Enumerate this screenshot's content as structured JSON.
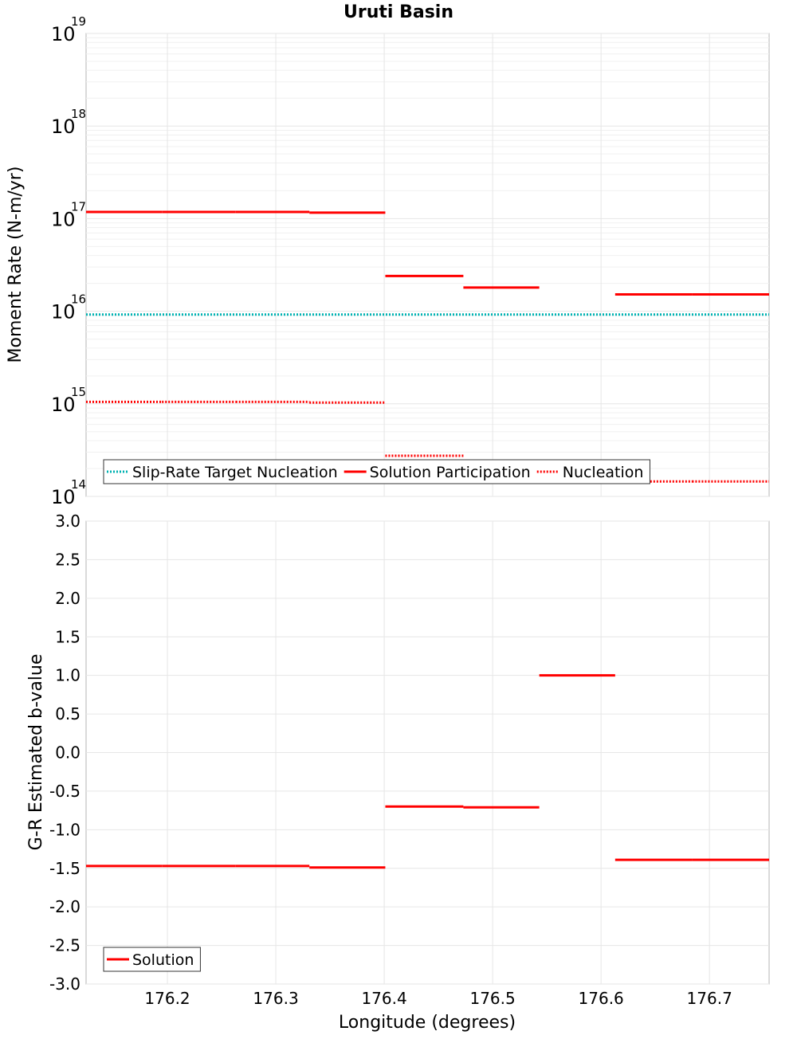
{
  "title": "Uruti Basin",
  "chart_data": [
    {
      "type": "line",
      "ylabel": "Moment Rate (N-m/yr)",
      "yscale": "log",
      "ylim": [
        100000000000000.0,
        1e+19
      ],
      "xlim": [
        176.125,
        176.755
      ],
      "y_ticks": [
        {
          "base": "10",
          "exp": "14",
          "value": 100000000000000.0
        },
        {
          "base": "10",
          "exp": "15",
          "value": 1000000000000000.0
        },
        {
          "base": "10",
          "exp": "16",
          "value": 1e+16
        },
        {
          "base": "10",
          "exp": "17",
          "value": 1e+17
        },
        {
          "base": "10",
          "exp": "18",
          "value": 1e+18
        },
        {
          "base": "10",
          "exp": "19",
          "value": 1e+19
        }
      ],
      "legend": {
        "position": "bottom-left",
        "boxed": true
      },
      "series": [
        {
          "name": "Slip-Rate Target Nucleation",
          "color": "#00b2b2",
          "style": "dotted",
          "segments": [
            {
              "x0": 176.125,
              "x1": 176.755,
              "y": 9200000000000000.0
            }
          ]
        },
        {
          "name": "Solution Participation",
          "color": "#ff0000",
          "style": "solid",
          "segments": [
            {
              "x0": 176.125,
              "x1": 176.195,
              "y": 1.18e+17
            },
            {
              "x0": 176.195,
              "x1": 176.263,
              "y": 1.18e+17
            },
            {
              "x0": 176.263,
              "x1": 176.331,
              "y": 1.18e+17
            },
            {
              "x0": 176.331,
              "x1": 176.401,
              "y": 1.16e+17
            },
            {
              "x0": 176.401,
              "x1": 176.473,
              "y": 2.4e+16
            },
            {
              "x0": 176.473,
              "x1": 176.543,
              "y": 1.8e+16
            },
            {
              "x0": 176.613,
              "x1": 176.684,
              "y": 1.52e+16
            },
            {
              "x0": 176.684,
              "x1": 176.755,
              "y": 1.52e+16
            }
          ]
        },
        {
          "name": "Nucleation",
          "color": "#ff0000",
          "style": "dotted",
          "segments": [
            {
              "x0": 176.125,
              "x1": 176.195,
              "y": 1050000000000000.0
            },
            {
              "x0": 176.195,
              "x1": 176.263,
              "y": 1050000000000000.0
            },
            {
              "x0": 176.263,
              "x1": 176.331,
              "y": 1050000000000000.0
            },
            {
              "x0": 176.331,
              "x1": 176.401,
              "y": 1030000000000000.0
            },
            {
              "x0": 176.401,
              "x1": 176.473,
              "y": 275000000000000.0
            },
            {
              "x0": 176.473,
              "x1": 176.543,
              "y": 215000000000000.0
            },
            {
              "x0": 176.613,
              "x1": 176.684,
              "y": 145000000000000.0
            },
            {
              "x0": 176.684,
              "x1": 176.755,
              "y": 145000000000000.0
            }
          ]
        }
      ]
    },
    {
      "type": "line",
      "xlabel": "Longitude (degrees)",
      "ylabel": "G-R Estimated b-value",
      "ylim": [
        -3.0,
        3.0
      ],
      "xlim": [
        176.125,
        176.755
      ],
      "y_ticks": [
        "-3.0",
        "-2.5",
        "-2.0",
        "-1.5",
        "-1.0",
        "-0.5",
        "0.0",
        "0.5",
        "1.0",
        "1.5",
        "2.0",
        "2.5",
        "3.0"
      ],
      "x_ticks": [
        "176.2",
        "176.3",
        "176.4",
        "176.5",
        "176.6",
        "176.7"
      ],
      "legend": {
        "position": "bottom-left",
        "boxed": true
      },
      "series": [
        {
          "name": "Solution",
          "color": "#ff0000",
          "style": "solid",
          "segments": [
            {
              "x0": 176.125,
              "x1": 176.195,
              "y": -1.47
            },
            {
              "x0": 176.195,
              "x1": 176.263,
              "y": -1.47
            },
            {
              "x0": 176.263,
              "x1": 176.331,
              "y": -1.47
            },
            {
              "x0": 176.331,
              "x1": 176.401,
              "y": -1.49
            },
            {
              "x0": 176.401,
              "x1": 176.473,
              "y": -0.7
            },
            {
              "x0": 176.473,
              "x1": 176.543,
              "y": -0.71
            },
            {
              "x0": 176.543,
              "x1": 176.613,
              "y": 1.0
            },
            {
              "x0": 176.613,
              "x1": 176.684,
              "y": -1.39
            },
            {
              "x0": 176.684,
              "x1": 176.755,
              "y": -1.39
            }
          ]
        }
      ]
    }
  ]
}
